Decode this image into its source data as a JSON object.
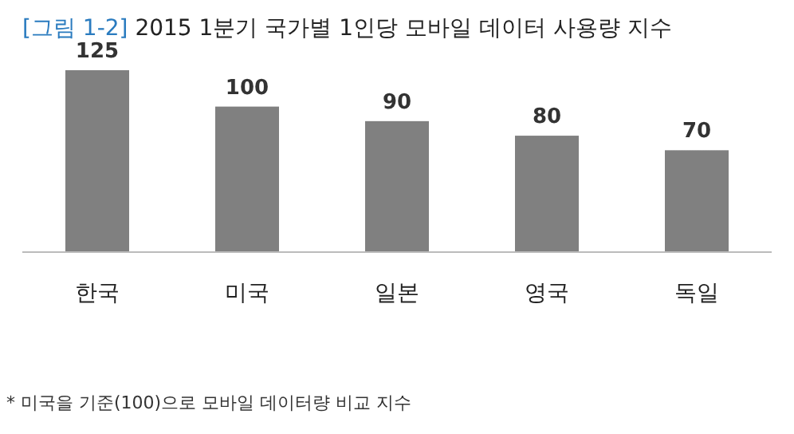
{
  "chart_data": {
    "type": "bar",
    "title": "[그림 1-2] 2015 1분기 국가별 1인당 모바일 데이터 사용량 지수",
    "categories": [
      "한국",
      "미국",
      "일본",
      "영국",
      "독일"
    ],
    "values": [
      125,
      100,
      90,
      80,
      70
    ],
    "color": "#808080",
    "data_labels": true,
    "annotations": [
      "* 미국을 기준(100)으로 모바일 데이터량 비교 지수"
    ]
  }
}
